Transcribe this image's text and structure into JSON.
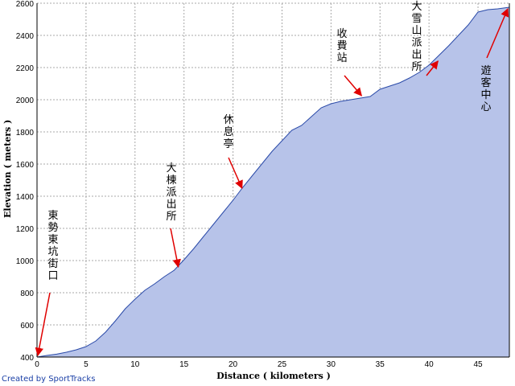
{
  "chart_data": {
    "type": "area",
    "title": "",
    "xlabel": "Distance ( kilometers )",
    "ylabel": "Elevation ( meters )",
    "xlim": [
      0,
      48.2
    ],
    "ylim": [
      400,
      2600
    ],
    "xticks": [
      0,
      5,
      10,
      15,
      20,
      25,
      30,
      35,
      40,
      45
    ],
    "yticks": [
      400,
      600,
      800,
      1000,
      1200,
      1400,
      1600,
      1800,
      2000,
      2200,
      2400,
      2600
    ],
    "grid": true,
    "colors": {
      "fill": "#b7c3e9",
      "line": "#2a4aa8",
      "grid": "#a8a8a8",
      "arrow": "#e00000"
    },
    "x": [
      0,
      1,
      2,
      3,
      4,
      5,
      6,
      7,
      8,
      9,
      10,
      11,
      12,
      13,
      14,
      15,
      16,
      17,
      18,
      19,
      20,
      21,
      22,
      23,
      24,
      25,
      26,
      27,
      28,
      29,
      30,
      31,
      32,
      33,
      34,
      35,
      36,
      37,
      38,
      39,
      40,
      41,
      42,
      43,
      44,
      45,
      46,
      47,
      48.2
    ],
    "y": [
      400,
      410,
      418,
      430,
      445,
      465,
      500,
      555,
      625,
      700,
      760,
      815,
      855,
      900,
      940,
      1005,
      1075,
      1150,
      1225,
      1300,
      1375,
      1455,
      1530,
      1605,
      1680,
      1745,
      1810,
      1840,
      1895,
      1950,
      1975,
      1990,
      2000,
      2010,
      2020,
      2065,
      2085,
      2105,
      2135,
      2170,
      2215,
      2275,
      2335,
      2400,
      2465,
      2545,
      2560,
      2565,
      2575
    ],
    "annotations": [
      {
        "label": "東勢東坑街口",
        "x": 0,
        "y": 400
      },
      {
        "label": "大棟派出所",
        "x": 14.5,
        "y": 945
      },
      {
        "label": "休息亭",
        "x": 21,
        "y": 1435
      },
      {
        "label": "收費站",
        "x": 33.2,
        "y": 2010
      },
      {
        "label": "大雪山派出所",
        "x": 41,
        "y": 2225
      },
      {
        "label": "遊客中心",
        "x": 48.2,
        "y": 2575
      }
    ]
  },
  "credit": "Created by SportTracks"
}
